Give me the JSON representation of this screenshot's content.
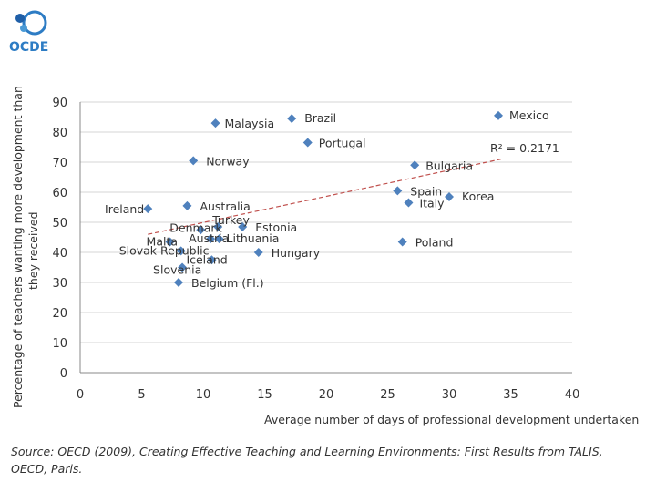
{
  "logo": {
    "wordmark": "OCDE",
    "colors": {
      "dot_dark": "#1f5fa8",
      "dot_light": "#4a9ad6",
      "ring": "#2d7cc4",
      "text": "#2d7cc4"
    }
  },
  "chart_data": {
    "type": "scatter",
    "xlabel": "Average number of days of professional development undertaken",
    "ylabel": "Percentage of teachers wanting more development than they received",
    "ylabel_lines": [
      "Percentage of teachers wanting more development than",
      "they received"
    ],
    "xlim": [
      0,
      40
    ],
    "ylim": [
      0,
      90
    ],
    "xticks": [
      "0",
      "5",
      "10",
      "15",
      "20",
      "25",
      "30",
      "35",
      "40"
    ],
    "yticks": [
      "0",
      "10",
      "20",
      "30",
      "40",
      "50",
      "60",
      "70",
      "80",
      "90"
    ],
    "grid": true,
    "marker_color": "#4f81bd",
    "trendline": {
      "x": [
        5.5,
        34.2
      ],
      "y": [
        46,
        71
      ],
      "color": "#c0504d",
      "style": "dashed"
    },
    "r_squared_label": "R² = 0.2171",
    "points": [
      {
        "name": "Mexico",
        "x": 34.0,
        "y": 85.5
      },
      {
        "name": "Brazil",
        "x": 17.2,
        "y": 84.5
      },
      {
        "name": "Malaysia",
        "x": 11.0,
        "y": 83.0
      },
      {
        "name": "Portugal",
        "x": 18.5,
        "y": 76.5
      },
      {
        "name": "Norway",
        "x": 9.2,
        "y": 70.5
      },
      {
        "name": "Bulgaria",
        "x": 27.2,
        "y": 69.0
      },
      {
        "name": "Spain",
        "x": 25.8,
        "y": 60.5
      },
      {
        "name": "Korea",
        "x": 30.0,
        "y": 58.5
      },
      {
        "name": "Italy",
        "x": 26.7,
        "y": 56.5
      },
      {
        "name": "Ireland",
        "x": 5.5,
        "y": 54.5
      },
      {
        "name": "Australia",
        "x": 8.7,
        "y": 55.5
      },
      {
        "name": "Turkey",
        "x": 11.2,
        "y": 48.5
      },
      {
        "name": "Estonia",
        "x": 13.2,
        "y": 48.5
      },
      {
        "name": "Denmark",
        "x": 9.8,
        "y": 47.5
      },
      {
        "name": "Austria",
        "x": 10.6,
        "y": 44.5
      },
      {
        "name": "Lithuania",
        "x": 11.3,
        "y": 44.5
      },
      {
        "name": "Malta",
        "x": 7.3,
        "y": 43.5
      },
      {
        "name": "Poland",
        "x": 26.2,
        "y": 43.5
      },
      {
        "name": "Hungary",
        "x": 14.5,
        "y": 40.0
      },
      {
        "name": "Slovak Republic",
        "x": 8.2,
        "y": 40.5
      },
      {
        "name": "Iceland",
        "x": 10.7,
        "y": 37.5
      },
      {
        "name": "Slovenia",
        "x": 8.3,
        "y": 35.0
      },
      {
        "name": "Belgium (Fl.)",
        "x": 8.0,
        "y": 30.0
      }
    ]
  },
  "source": "Source: OECD (2009), Creating Effective Teaching and Learning Environments: First Results from TALIS, OECD, Paris."
}
